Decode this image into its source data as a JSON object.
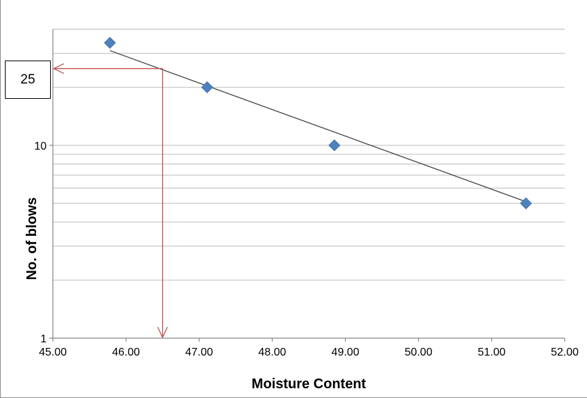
{
  "chart_data": {
    "type": "scatter",
    "title": "",
    "xlabel": "Moisture Content",
    "ylabel": "No. of blows",
    "xlim": [
      45,
      52
    ],
    "ylim": [
      1,
      40
    ],
    "y_scale": "log",
    "x_ticks": [
      "45.00",
      "46.00",
      "47.00",
      "48.00",
      "49.00",
      "50.00",
      "51.00",
      "52.00"
    ],
    "y_ticks": [
      "1",
      "10"
    ],
    "grid": true,
    "legend": "none",
    "series": [
      {
        "x": [
          45.78,
          47.11,
          48.85,
          51.47
        ],
        "y": [
          34,
          20,
          10,
          5
        ],
        "color": "#4f81bd",
        "marker": "diamond"
      }
    ],
    "trendline": {
      "type": "log",
      "x": [
        45.78,
        51.47
      ],
      "y": [
        31,
        5.1
      ],
      "color": "#404040"
    },
    "annotation": {
      "label": "25",
      "y": 25,
      "x": 46.5,
      "color": "#c0504d"
    }
  }
}
